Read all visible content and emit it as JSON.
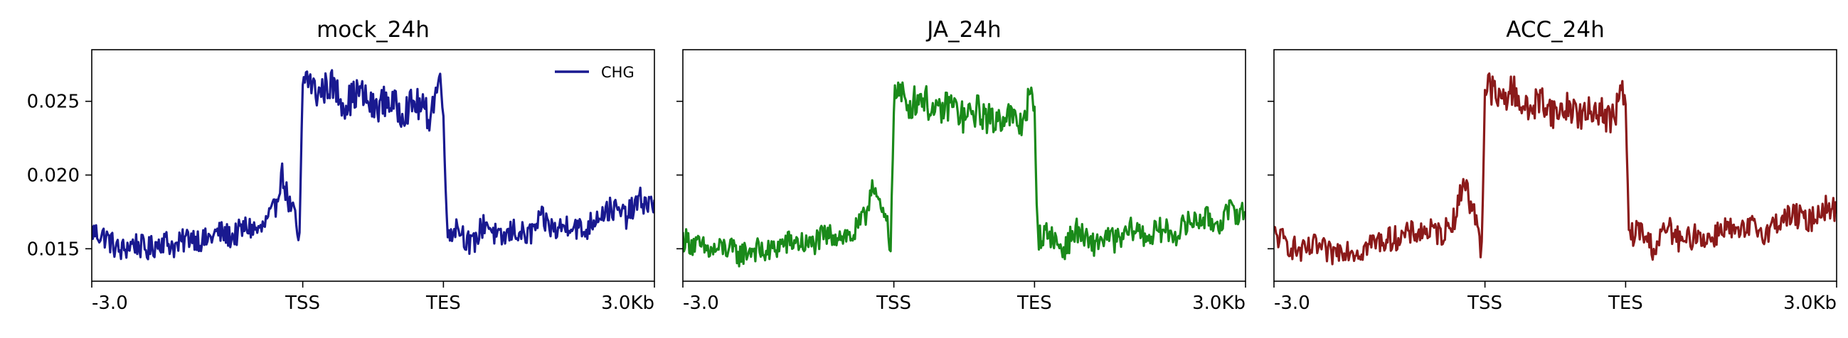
{
  "chart_data": [
    {
      "type": "line",
      "title": "mock_24h",
      "xlabel": "",
      "ylabel": "",
      "x_ticks": [
        "-3.0",
        "TSS",
        "TES",
        "3.0Kb"
      ],
      "x_tick_positions": [
        0,
        3000,
        5000,
        8000
      ],
      "y_ticks": [
        "0.015",
        "0.020",
        "0.025"
      ],
      "ylim": [
        0.0128,
        0.0285
      ],
      "show_y_tick_labels": true,
      "legend": {
        "placement": "upper-right",
        "label": "CHG"
      },
      "series": [
        {
          "name": "CHG",
          "color": "#191990",
          "x": [
            0,
            200,
            400,
            600,
            800,
            1000,
            1200,
            1400,
            1600,
            1800,
            2000,
            2200,
            2400,
            2600,
            2700,
            2800,
            2900,
            2950,
            3000,
            3050,
            3200,
            3400,
            3600,
            3800,
            4000,
            4200,
            4400,
            4600,
            4800,
            4950,
            5000,
            5050,
            5200,
            5400,
            5600,
            5800,
            6000,
            6200,
            6400,
            6600,
            6800,
            7000,
            7200,
            7400,
            7600,
            7800,
            8000
          ],
          "y": [
            0.0162,
            0.0158,
            0.0148,
            0.0154,
            0.0149,
            0.0156,
            0.0151,
            0.0159,
            0.0155,
            0.0161,
            0.0158,
            0.0165,
            0.0162,
            0.0176,
            0.0202,
            0.0181,
            0.017,
            0.0147,
            0.0262,
            0.0268,
            0.0255,
            0.0262,
            0.0248,
            0.0257,
            0.0245,
            0.0251,
            0.0243,
            0.0249,
            0.024,
            0.0266,
            0.0248,
            0.016,
            0.0166,
            0.0151,
            0.0169,
            0.0155,
            0.0163,
            0.0158,
            0.017,
            0.0162,
            0.0168,
            0.0161,
            0.0174,
            0.0177,
            0.0172,
            0.0183,
            0.0179
          ]
        }
      ]
    },
    {
      "type": "line",
      "title": "JA_24h",
      "xlabel": "",
      "ylabel": "",
      "x_ticks": [
        "-3.0",
        "TSS",
        "TES",
        "3.0Kb"
      ],
      "x_tick_positions": [
        0,
        3000,
        5000,
        8000
      ],
      "y_ticks": [
        "0.015",
        "0.020",
        "0.025"
      ],
      "ylim": [
        0.0128,
        0.0285
      ],
      "show_y_tick_labels": false,
      "series": [
        {
          "name": "",
          "color": "#1a8a1a",
          "x": [
            0,
            200,
            400,
            600,
            800,
            1000,
            1200,
            1400,
            1600,
            1800,
            2000,
            2200,
            2400,
            2600,
            2700,
            2800,
            2900,
            2950,
            3000,
            3050,
            3200,
            3400,
            3600,
            3800,
            4000,
            4200,
            4400,
            4600,
            4800,
            4950,
            5000,
            5050,
            5200,
            5400,
            5600,
            5800,
            6000,
            6200,
            6400,
            6600,
            6800,
            7000,
            7200,
            7400,
            7600,
            7800,
            8000
          ],
          "y": [
            0.0157,
            0.0152,
            0.0148,
            0.0151,
            0.0146,
            0.015,
            0.0147,
            0.0153,
            0.0155,
            0.0152,
            0.0158,
            0.016,
            0.0158,
            0.0172,
            0.0198,
            0.0176,
            0.0168,
            0.0146,
            0.025,
            0.0258,
            0.0247,
            0.0254,
            0.024,
            0.0249,
            0.0238,
            0.0244,
            0.0236,
            0.0242,
            0.0233,
            0.0255,
            0.024,
            0.0157,
            0.0161,
            0.0149,
            0.0163,
            0.0152,
            0.0158,
            0.0155,
            0.0164,
            0.0158,
            0.0163,
            0.016,
            0.0168,
            0.0171,
            0.0167,
            0.0176,
            0.0174
          ]
        }
      ]
    },
    {
      "type": "line",
      "title": "ACC_24h",
      "xlabel": "",
      "ylabel": "",
      "x_ticks": [
        "-3.0",
        "TSS",
        "TES",
        "3.0Kb"
      ],
      "x_tick_positions": [
        0,
        3000,
        5000,
        8000
      ],
      "y_ticks": [
        "0.015",
        "0.020",
        "0.025"
      ],
      "ylim": [
        0.0128,
        0.0285
      ],
      "show_y_tick_labels": false,
      "series": [
        {
          "name": "",
          "color": "#8b1a1a",
          "x": [
            0,
            200,
            400,
            600,
            800,
            1000,
            1200,
            1400,
            1600,
            1800,
            2000,
            2200,
            2400,
            2600,
            2700,
            2800,
            2900,
            2950,
            3000,
            3050,
            3200,
            3400,
            3600,
            3800,
            4000,
            4200,
            4400,
            4600,
            4800,
            4950,
            5000,
            5050,
            5200,
            5400,
            5600,
            5800,
            6000,
            6200,
            6400,
            6600,
            6800,
            7000,
            7200,
            7400,
            7600,
            7800,
            8000
          ],
          "y": [
            0.016,
            0.0153,
            0.0147,
            0.0152,
            0.0146,
            0.0151,
            0.0148,
            0.0154,
            0.0156,
            0.0158,
            0.0161,
            0.0162,
            0.016,
            0.0174,
            0.02,
            0.0178,
            0.0169,
            0.0146,
            0.0255,
            0.0262,
            0.025,
            0.0258,
            0.0243,
            0.0252,
            0.0241,
            0.0247,
            0.0239,
            0.0246,
            0.0236,
            0.0258,
            0.0244,
            0.0158,
            0.0163,
            0.015,
            0.0165,
            0.0153,
            0.016,
            0.0156,
            0.0166,
            0.0159,
            0.0165,
            0.0161,
            0.017,
            0.0173,
            0.0168,
            0.0178,
            0.0176
          ]
        }
      ]
    }
  ]
}
